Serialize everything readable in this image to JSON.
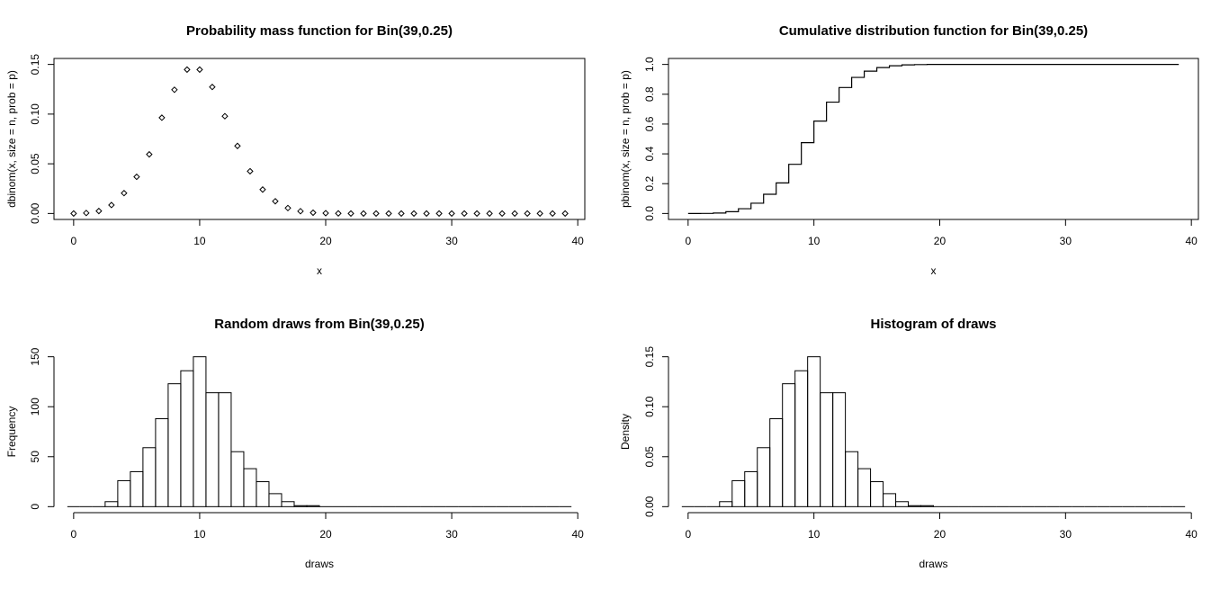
{
  "chart_data": [
    {
      "type": "scatter",
      "title": "Probability mass function for Bin(39,0.25)",
      "xlabel": "x",
      "ylabel": "dbinom(x, size = n, prob = p)",
      "xlim": [
        -1.56,
        40.56
      ],
      "ylim": [
        0,
        0.15
      ],
      "xticks": [
        0,
        10,
        20,
        30,
        40
      ],
      "yticks": [
        0,
        0.05,
        0.1,
        0.15
      ],
      "ytick_labels": [
        "0.00",
        "0.05",
        "0.10",
        "0.15"
      ],
      "box": true,
      "x": [
        0,
        1,
        2,
        3,
        4,
        5,
        6,
        7,
        8,
        9,
        10,
        11,
        12,
        13,
        14,
        15,
        16,
        17,
        18,
        19,
        20,
        21,
        22,
        23,
        24,
        25,
        26,
        27,
        28,
        29,
        30,
        31,
        32,
        33,
        34,
        35,
        36,
        37,
        38,
        39
      ],
      "y": [
        0.0,
        0.0005,
        0.0025,
        0.0085,
        0.0205,
        0.0369,
        0.0595,
        0.0964,
        0.1245,
        0.1448,
        0.1448,
        0.1273,
        0.0979,
        0.068,
        0.0425,
        0.0241,
        0.0123,
        0.0055,
        0.0023,
        0.0008,
        0.0003,
        0.0001,
        0,
        0,
        0,
        0,
        0,
        0,
        0,
        0,
        0,
        0,
        0,
        0,
        0,
        0,
        0,
        0,
        0,
        0
      ]
    },
    {
      "type": "line",
      "step": true,
      "title": "Cumulative distribution function for Bin(39,0.25)",
      "xlabel": "x",
      "ylabel": "pbinom(x, size = n, prob = p)",
      "xlim": [
        -1.56,
        40.56
      ],
      "ylim": [
        0,
        1
      ],
      "xticks": [
        0,
        10,
        20,
        30,
        40
      ],
      "yticks": [
        0,
        0.2,
        0.4,
        0.6,
        0.8,
        1.0
      ],
      "ytick_labels": [
        "0.0",
        "0.2",
        "0.4",
        "0.6",
        "0.8",
        "1.0"
      ],
      "box": true,
      "x": [
        0,
        1,
        2,
        3,
        4,
        5,
        6,
        7,
        8,
        9,
        10,
        11,
        12,
        13,
        14,
        15,
        16,
        17,
        18,
        19,
        20,
        21,
        22,
        23,
        24,
        25,
        26,
        27,
        28,
        29,
        30,
        31,
        32,
        33,
        34,
        35,
        36,
        37,
        38,
        39
      ],
      "y": [
        0.0,
        0.0005,
        0.003,
        0.012,
        0.032,
        0.069,
        0.129,
        0.205,
        0.33,
        0.475,
        0.62,
        0.747,
        0.845,
        0.913,
        0.955,
        0.979,
        0.991,
        0.997,
        0.999,
        1,
        1,
        1,
        1,
        1,
        1,
        1,
        1,
        1,
        1,
        1,
        1,
        1,
        1,
        1,
        1,
        1,
        1,
        1,
        1,
        1
      ]
    },
    {
      "type": "bar",
      "histogram": true,
      "title": "Random draws from Bin(39,0.25)",
      "xlabel": "draws",
      "ylabel": "Frequency",
      "xlim": [
        -1.56,
        40.56
      ],
      "ylim": [
        0,
        150
      ],
      "xticks": [
        0,
        10,
        20,
        30,
        40
      ],
      "yticks": [
        0,
        50,
        100,
        150
      ],
      "ytick_labels": [
        "0",
        "50",
        "100",
        "150"
      ],
      "box": false,
      "bin_start": -0.5,
      "bin_width": 1,
      "values": [
        0,
        0,
        0,
        5,
        26,
        35,
        59,
        88,
        123,
        136,
        150,
        114,
        114,
        55,
        38,
        25,
        13,
        5,
        1,
        1,
        0,
        0,
        0,
        0,
        0,
        0,
        0,
        0,
        0,
        0,
        0,
        0,
        0,
        0,
        0,
        0,
        0,
        0,
        0,
        0
      ]
    },
    {
      "type": "bar",
      "histogram": true,
      "title": "Histogram of draws",
      "xlabel": "draws",
      "ylabel": "Density",
      "xlim": [
        -1.56,
        40.56
      ],
      "ylim": [
        0,
        0.15
      ],
      "xticks": [
        0,
        10,
        20,
        30,
        40
      ],
      "yticks": [
        0,
        0.05,
        0.1,
        0.15
      ],
      "ytick_labels": [
        "0.00",
        "0.05",
        "0.10",
        "0.15"
      ],
      "box": false,
      "bin_start": -0.5,
      "bin_width": 1,
      "values": [
        0,
        0,
        0,
        0.005,
        0.026,
        0.035,
        0.059,
        0.088,
        0.123,
        0.136,
        0.15,
        0.114,
        0.114,
        0.055,
        0.038,
        0.025,
        0.013,
        0.005,
        0.001,
        0.001,
        0,
        0,
        0,
        0,
        0,
        0,
        0,
        0,
        0,
        0,
        0,
        0,
        0,
        0,
        0,
        0,
        0,
        0,
        0,
        0
      ]
    }
  ]
}
